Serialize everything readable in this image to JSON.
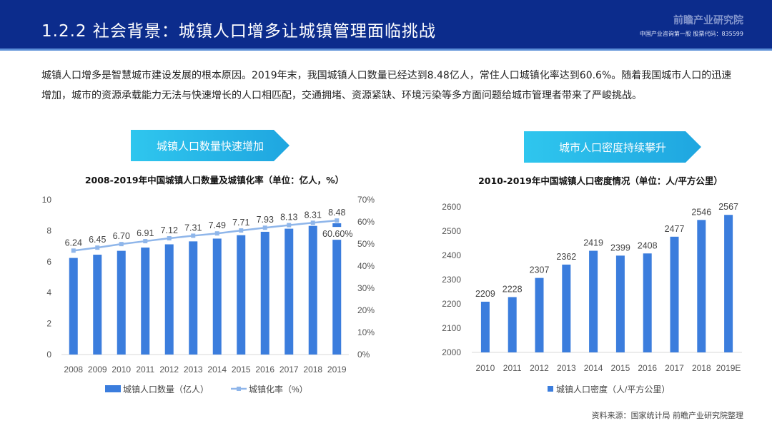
{
  "header": {
    "title": "1.2.2 社会背景：城镇人口增多让城镇管理面临挑战",
    "logo": "前瞻产业研究院",
    "sub": "中国产业咨询第一股 股票代码：835599"
  },
  "intro": "城镇人口增多是智慧城市建设发展的根本原因。2019年末，我国城镇人口数量已经达到8.48亿人，常住人口城镇化率达到60.6%。随着我国城市人口的迅速增加，城市的资源承载能力无法与快速增长的人口相匹配，交通拥堵、资源紧缺、环境污染等多方面问题给城市管理者带来了严峻挑战。",
  "banners": {
    "left": "城镇人口数量快速增加",
    "right": "城市人口密度持续攀升"
  },
  "source": "资料来源：国家统计局 前瞻产业研究院整理",
  "colors": {
    "bar": "#3b7ddd",
    "line": "#8fb6ea",
    "header": "#0c2c8c"
  },
  "chart_data": [
    {
      "type": "bar",
      "title": "2008-2019年中国城镇人口数量及城镇化率（单位：亿人，%）",
      "categories": [
        "2008",
        "2009",
        "2010",
        "2011",
        "2012",
        "2013",
        "2014",
        "2015",
        "2016",
        "2017",
        "2018",
        "2019"
      ],
      "series": [
        {
          "name": "城镇人口数量（亿人）",
          "type": "bar",
          "axis": "left",
          "values": [
            6.24,
            6.45,
            6.7,
            6.91,
            7.12,
            7.31,
            7.49,
            7.71,
            7.93,
            8.13,
            8.31,
            8.48
          ],
          "labels": [
            "6.24",
            "6.45",
            "6.70",
            "6.91",
            "7.12",
            "7.31",
            "7.49",
            "7.71",
            "7.93",
            "8.13",
            "8.31",
            "8.48"
          ]
        },
        {
          "name": "城镇化率（%）",
          "type": "line",
          "axis": "right",
          "values": [
            46.99,
            48.34,
            49.95,
            51.27,
            52.57,
            53.73,
            54.77,
            56.1,
            57.35,
            58.52,
            59.58,
            60.6
          ],
          "last_label": "60.60%"
        }
      ],
      "ylim": [
        0,
        10
      ],
      "yticks": [
        "0",
        "2",
        "4",
        "6",
        "8",
        "10"
      ],
      "y2lim": [
        0,
        70
      ],
      "y2ticks": [
        "0%",
        "10%",
        "20%",
        "30%",
        "40%",
        "50%",
        "60%",
        "70%"
      ]
    },
    {
      "type": "bar",
      "title": "2010-2019年中国城镇人口密度情况（单位：人/平方公里）",
      "categories": [
        "2010",
        "2011",
        "2012",
        "2013",
        "2014",
        "2015",
        "2016",
        "2017",
        "2018",
        "2019E"
      ],
      "series": [
        {
          "name": "城镇人口密度（人/平方公里）",
          "values": [
            2209,
            2228,
            2307,
            2362,
            2419,
            2399,
            2408,
            2477,
            2546,
            2567
          ]
        }
      ],
      "ylim": [
        2000,
        2600
      ],
      "yticks": [
        "2000",
        "2100",
        "2200",
        "2300",
        "2400",
        "2500",
        "2600"
      ]
    }
  ]
}
